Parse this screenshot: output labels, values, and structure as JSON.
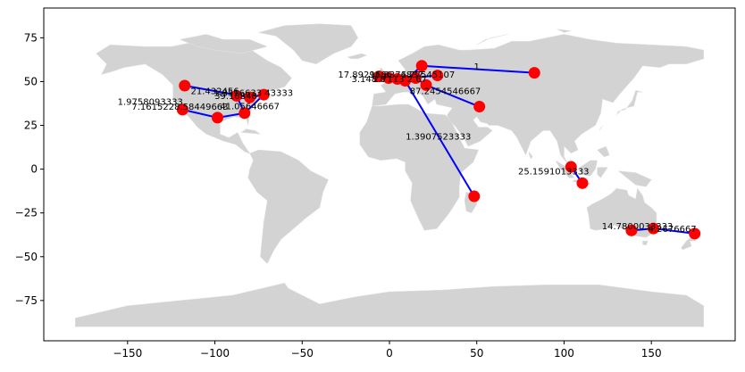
{
  "chart_data": {
    "type": "scatter",
    "title": "",
    "xlabel": "",
    "ylabel": "",
    "xlim": [
      -198,
      198
    ],
    "ylim": [
      -98,
      92
    ],
    "grid": false,
    "legend": "none",
    "colors": {
      "land": "#d3d3d3",
      "node": "#ff0000",
      "edge": "#0000ff",
      "frame": "#000000"
    },
    "xticks": [
      {
        "value": -150,
        "label": "−150"
      },
      {
        "value": -100,
        "label": "−100"
      },
      {
        "value": -50,
        "label": "−50"
      },
      {
        "value": 0,
        "label": "0"
      },
      {
        "value": 50,
        "label": "50"
      },
      {
        "value": 100,
        "label": "100"
      },
      {
        "value": 150,
        "label": "150"
      }
    ],
    "yticks": [
      {
        "value": 75,
        "label": "75"
      },
      {
        "value": 50,
        "label": "50"
      },
      {
        "value": 25,
        "label": "25"
      },
      {
        "value": 0,
        "label": "0"
      },
      {
        "value": -25,
        "label": "−25"
      },
      {
        "value": -50,
        "label": "−50"
      },
      {
        "value": -75,
        "label": "−75"
      }
    ],
    "nodes": [
      {
        "id": "n1",
        "lon": -117.3,
        "lat": 47.7
      },
      {
        "id": "n2",
        "lon": -118.5,
        "lat": 34.0
      },
      {
        "id": "n3",
        "lon": -98.5,
        "lat": 29.4
      },
      {
        "id": "n4",
        "lon": -83.0,
        "lat": 32.0
      },
      {
        "id": "n5",
        "lon": -72.0,
        "lat": 42.5
      },
      {
        "id": "n6",
        "lon": -80.0,
        "lat": 41.0
      },
      {
        "id": "n7",
        "lon": -87.6,
        "lat": 41.9
      },
      {
        "id": "n8",
        "lon": -0.5,
        "lat": 52.0
      },
      {
        "id": "n9",
        "lon": -6.0,
        "lat": 53.0
      },
      {
        "id": "n10",
        "lon": 4.5,
        "lat": 51.5
      },
      {
        "id": "n11",
        "lon": 9.0,
        "lat": 50.5
      },
      {
        "id": "n12",
        "lon": 15.0,
        "lat": 52.0
      },
      {
        "id": "n13",
        "lon": 18.5,
        "lat": 59.0
      },
      {
        "id": "n14",
        "lon": 27.5,
        "lat": 53.5
      },
      {
        "id": "n15",
        "lon": 21.0,
        "lat": 48.0
      },
      {
        "id": "n16",
        "lon": 51.5,
        "lat": 35.7
      },
      {
        "id": "n17",
        "lon": 83.0,
        "lat": 55.0
      },
      {
        "id": "n18",
        "lon": 48.5,
        "lat": -15.5
      },
      {
        "id": "n19",
        "lon": 104.0,
        "lat": 1.3
      },
      {
        "id": "n20",
        "lon": 110.5,
        "lat": -8.0
      },
      {
        "id": "n21",
        "lon": 138.6,
        "lat": -35.0
      },
      {
        "id": "n22",
        "lon": 151.2,
        "lat": -33.9
      },
      {
        "id": "n23",
        "lon": 174.8,
        "lat": -36.8
      }
    ],
    "edges": [
      {
        "from": "n1",
        "to": "n6",
        "label": "21.432456",
        "lx": -100,
        "ly": 44.5
      },
      {
        "from": "n2",
        "to": "n3",
        "label": "1.9758093333",
        "lx": -137,
        "ly": 38.3
      },
      {
        "from": "n3",
        "to": "n4",
        "label": "7.1615228.58449663",
        "lx": -120,
        "ly": 35.5
      },
      {
        "from": "n4",
        "to": "n5",
        "label": "39.10848",
        "lx": -88,
        "ly": 41.5
      },
      {
        "from": "n6",
        "to": "n5",
        "label": "1.8516633 43333",
        "lx": -78,
        "ly": 43.3
      },
      {
        "from": "n4",
        "to": "n7",
        "label": "41.05646667",
        "lx": -80,
        "ly": 35.8
      },
      {
        "from": "n8",
        "to": "n12",
        "label": "17.8929166",
        "lx": -14,
        "ly": 53.7
      },
      {
        "from": "n9",
        "to": "n10",
        "label": "3.148 8",
        "lx": -12,
        "ly": 51.2
      },
      {
        "from": "n10",
        "to": "n14",
        "label": "16.8376837",
        "lx": 4,
        "ly": 53.7
      },
      {
        "from": "n11",
        "to": "n13",
        "label": "1.77545107",
        "lx": 22,
        "ly": 53.7
      },
      {
        "from": "n12",
        "to": "n15",
        "label": "2.7113 2.67",
        "lx": 6,
        "ly": 51.3
      },
      {
        "from": "n13",
        "to": "n17",
        "label": "1",
        "lx": 50,
        "ly": 58.5
      },
      {
        "from": "n15",
        "to": "n16",
        "label": "87.2454546667",
        "lx": 32,
        "ly": 44.3
      },
      {
        "from": "n11",
        "to": "n18",
        "label": "1.3907523333",
        "lx": 28,
        "ly": 18.3
      },
      {
        "from": "n19",
        "to": "n20",
        "label": "25.1591013333",
        "lx": 94,
        "ly": -1.5
      },
      {
        "from": "n21",
        "to": "n22",
        "label": "14.7800033333",
        "lx": 142,
        "ly": -32.8
      },
      {
        "from": "n22",
        "to": "n23",
        "label": "4.2676667",
        "lx": 162,
        "ly": -34.2
      }
    ]
  }
}
